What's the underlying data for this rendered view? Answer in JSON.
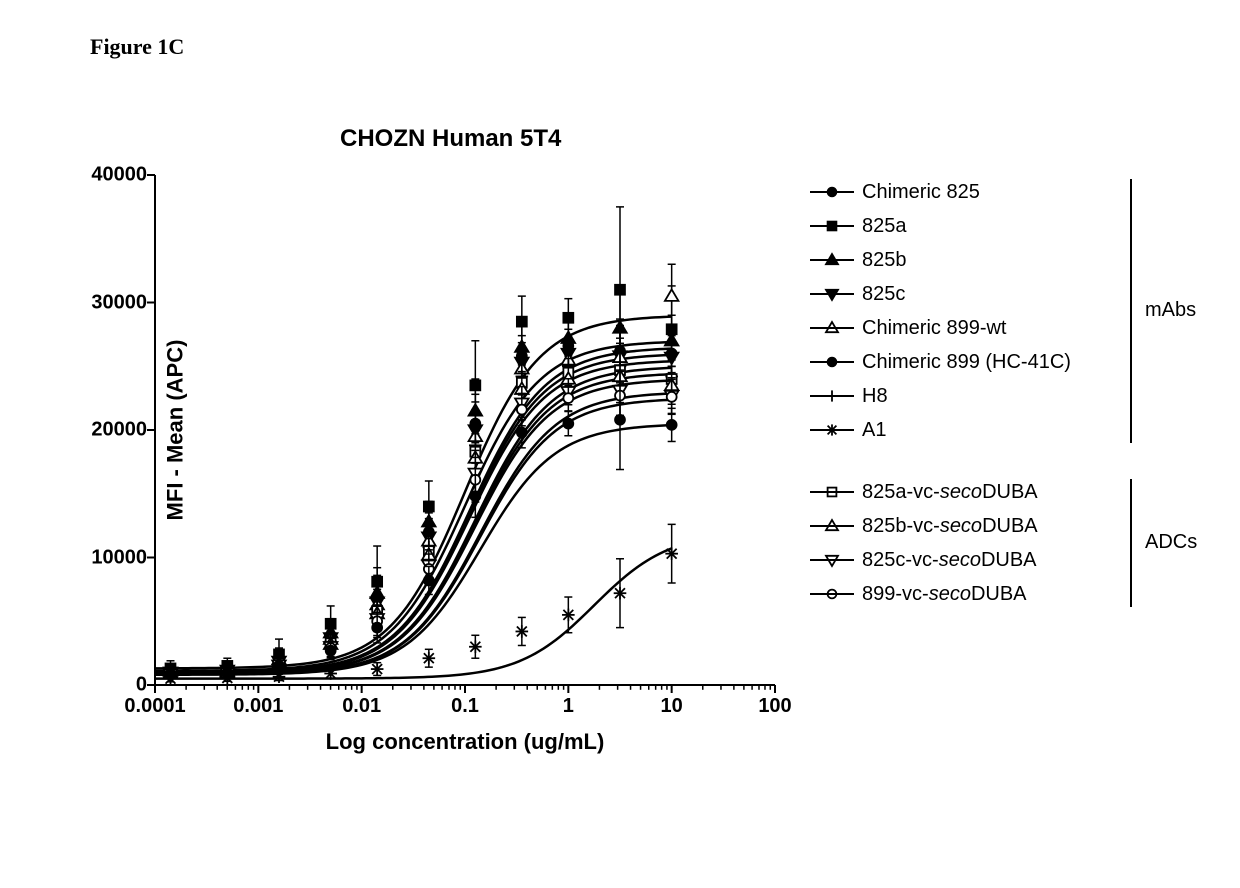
{
  "figure_label": "Figure 1C",
  "title": "CHOZN Human 5T4",
  "axes": {
    "ylabel": "MFI - Mean (APC)",
    "xlabel": "Log concentration (ug/mL)",
    "x_scale": "log10",
    "x_min_exp": -4,
    "x_max_exp": 2,
    "y_min": 0,
    "y_max": 40000,
    "y_tick_step": 10000,
    "x_data_min_exp": -4,
    "x_data_max_exp": 1,
    "x_tick_labels": [
      "0.0001",
      "0.001",
      "0.01",
      "0.1",
      "1",
      "10",
      "100"
    ],
    "y_tick_labels": [
      "0",
      "10000",
      "20000",
      "30000",
      "40000"
    ],
    "axis_color": "#000000",
    "axis_width": 2,
    "tick_length": 8,
    "minor_ticks_per_decade": true,
    "label_fontsize": 22,
    "tick_fontsize": 20,
    "title_fontsize": 24
  },
  "legend_groups": [
    {
      "label": "mAbs",
      "items": [
        {
          "marker": "circle_filled",
          "label": "Chimeric 825"
        },
        {
          "marker": "square_filled",
          "label": "825a"
        },
        {
          "marker": "triangle_up_filled",
          "label": "825b"
        },
        {
          "marker": "triangle_down_filled",
          "label": "825c"
        },
        {
          "marker": "triangle_up_open",
          "label": "Chimeric 899-wt"
        },
        {
          "marker": "circle_filled",
          "label": "Chimeric 899 (HC-41C)"
        },
        {
          "marker": "plus",
          "label": "H8"
        },
        {
          "marker": "asterisk",
          "label": "A1"
        }
      ]
    },
    {
      "label": "ADCs",
      "items": [
        {
          "marker": "square_open",
          "label": "825a-vc-<i>seco</i>DUBA"
        },
        {
          "marker": "triangle_up_open",
          "label": "825b-vc-<i>seco</i>DUBA"
        },
        {
          "marker": "triangle_down_open",
          "label": "825c-vc-<i>seco</i>DUBA"
        },
        {
          "marker": "circle_open",
          "label": "899-vc-<i>seco</i>DUBA"
        }
      ]
    }
  ],
  "series": [
    {
      "name": "825a",
      "marker": "square_filled",
      "plateau": 29000,
      "bottom": 1300,
      "ec50_log": -1.0,
      "x": [
        -3.85,
        -3.3,
        -2.8,
        -2.3,
        -1.85,
        -1.35,
        -0.9,
        -0.45,
        0,
        0.5,
        1
      ],
      "y": [
        1300,
        1500,
        2400,
        4800,
        8100,
        14000,
        23500,
        28500,
        28800,
        31000,
        27900
      ],
      "err": [
        600,
        600,
        1200,
        1400,
        2800,
        2000,
        3500,
        2000,
        1500,
        6500,
        3400
      ]
    },
    {
      "name": "825b",
      "marker": "triangle_up_filled",
      "plateau": 27000,
      "bottom": 1100,
      "ec50_log": -1.0,
      "x": [
        -3.85,
        -3.3,
        -2.8,
        -2.3,
        -1.85,
        -1.35,
        -0.9,
        -0.45,
        0,
        0.5,
        1
      ],
      "y": [
        1100,
        1300,
        2000,
        4100,
        7200,
        12800,
        21500,
        26500,
        27200,
        28000,
        27000
      ],
      "err": [
        400,
        500,
        900,
        1100,
        2000,
        1600,
        2500,
        1700,
        1400,
        3000,
        2000
      ]
    },
    {
      "name": "Chimeric 825",
      "marker": "circle_filled",
      "plateau": 26500,
      "bottom": 1000,
      "ec50_log": -0.95,
      "x": [
        -3.85,
        -3.3,
        -2.8,
        -2.3,
        -1.85,
        -1.35,
        -0.9,
        -0.45,
        0,
        0.5,
        1
      ],
      "y": [
        1000,
        1200,
        1900,
        3900,
        6800,
        12000,
        20500,
        25800,
        26600,
        26200,
        26000
      ],
      "err": [
        400,
        500,
        800,
        1000,
        1800,
        1500,
        2300,
        1600,
        1300,
        2500,
        1800
      ]
    },
    {
      "name": "825c",
      "marker": "triangle_down_filled",
      "plateau": 26000,
      "bottom": 1000,
      "ec50_log": -0.95,
      "x": [
        -3.85,
        -3.3,
        -2.8,
        -2.3,
        -1.85,
        -1.35,
        -0.9,
        -0.45,
        0,
        0.5,
        1
      ],
      "y": [
        1000,
        1150,
        1850,
        3700,
        6500,
        11600,
        20000,
        25300,
        26000,
        25800,
        25700
      ],
      "err": [
        400,
        450,
        750,
        950,
        1700,
        1450,
        2200,
        1550,
        1250,
        2400,
        1700
      ]
    },
    {
      "name": "Chimeric 899-wt",
      "marker": "triangle_up_open",
      "plateau": 25500,
      "bottom": 950,
      "ec50_log": -0.95,
      "x": [
        -3.85,
        -3.3,
        -2.8,
        -2.3,
        -1.85,
        -1.35,
        -0.9,
        -0.45,
        0,
        0.5,
        1
      ],
      "y": [
        950,
        1100,
        1800,
        3600,
        6300,
        11300,
        19500,
        24800,
        25500,
        25700,
        30500
      ],
      "err": [
        350,
        400,
        700,
        900,
        1600,
        1400,
        2100,
        1500,
        1200,
        2300,
        2500
      ]
    },
    {
      "name": "H8",
      "marker": "plus",
      "plateau": 25000,
      "bottom": 900,
      "ec50_log": -0.9,
      "x": [
        -3.85,
        -3.3,
        -2.8,
        -2.3,
        -1.85,
        -1.35,
        -0.9,
        -0.45,
        0,
        0.5,
        1
      ],
      "y": [
        900,
        1050,
        1700,
        3400,
        6000,
        10800,
        18800,
        24200,
        25000,
        25000,
        24200
      ],
      "err": [
        350,
        400,
        700,
        850,
        1500,
        1350,
        2000,
        1450,
        1150,
        2200,
        1550
      ]
    },
    {
      "name": "825a-vc-secoDUBA",
      "marker": "square_open",
      "plateau": 24500,
      "bottom": 900,
      "ec50_log": -0.9,
      "x": [
        -3.85,
        -3.3,
        -2.8,
        -2.3,
        -1.85,
        -1.35,
        -0.9,
        -0.45,
        0,
        0.5,
        1
      ],
      "y": [
        900,
        1050,
        1700,
        3300,
        5800,
        10500,
        18300,
        23700,
        24500,
        24700,
        24000
      ],
      "err": [
        330,
        380,
        650,
        820,
        1450,
        1300,
        1950,
        1400,
        1100,
        2100,
        1500
      ]
    },
    {
      "name": "825b-vc-secoDUBA",
      "marker": "triangle_up_open",
      "plateau": 24000,
      "bottom": 900,
      "ec50_log": -0.9,
      "x": [
        -3.85,
        -3.3,
        -2.8,
        -2.3,
        -1.85,
        -1.35,
        -0.9,
        -0.45,
        0,
        0.5,
        1
      ],
      "y": [
        900,
        1000,
        1650,
        3200,
        5600,
        10200,
        17800,
        23200,
        24000,
        24200,
        23500
      ],
      "err": [
        320,
        370,
        630,
        800,
        1400,
        1280,
        1900,
        1380,
        1080,
        2050,
        1480
      ]
    },
    {
      "name": "825c-vc-secoDUBA",
      "marker": "triangle_down_open",
      "plateau": 23000,
      "bottom": 850,
      "ec50_log": -0.85,
      "x": [
        -3.85,
        -3.3,
        -2.8,
        -2.3,
        -1.85,
        -1.35,
        -0.9,
        -0.45,
        0,
        0.5,
        1
      ],
      "y": [
        850,
        950,
        1550,
        3000,
        5200,
        9400,
        16600,
        22100,
        23000,
        23100,
        22700
      ],
      "err": [
        300,
        350,
        600,
        770,
        1320,
        1200,
        1800,
        1300,
        1020,
        1950,
        1400
      ]
    },
    {
      "name": "899-vc-secoDUBA",
      "marker": "circle_open",
      "plateau": 22500,
      "bottom": 850,
      "ec50_log": -0.85,
      "x": [
        -3.85,
        -3.3,
        -2.8,
        -2.3,
        -1.85,
        -1.35,
        -0.9,
        -0.45,
        0,
        0.5,
        1
      ],
      "y": [
        850,
        950,
        1500,
        2900,
        5000,
        9100,
        16100,
        21600,
        22500,
        22700,
        22600
      ],
      "err": [
        300,
        340,
        580,
        750,
        1280,
        1170,
        1750,
        1270,
        1000,
        1900,
        1370
      ]
    },
    {
      "name": "Chimeric 899 (HC-41C)",
      "marker": "circle_filled",
      "plateau": 20500,
      "bottom": 800,
      "ec50_log": -0.85,
      "x": [
        -3.85,
        -3.3,
        -2.8,
        -2.3,
        -1.85,
        -1.35,
        -0.9,
        -0.45,
        0,
        0.5,
        1
      ],
      "y": [
        800,
        900,
        1400,
        2700,
        4500,
        8200,
        14800,
        19800,
        20500,
        20800,
        20400
      ],
      "err": [
        280,
        320,
        550,
        700,
        1200,
        1100,
        1650,
        1200,
        950,
        3900,
        1300
      ]
    },
    {
      "name": "A1",
      "marker": "asterisk",
      "plateau": 12000,
      "bottom": 500,
      "ec50_log": 0.25,
      "x": [
        -3.85,
        -3.3,
        -2.8,
        -2.3,
        -1.85,
        -1.35,
        -0.9,
        -0.45,
        0,
        0.5,
        1
      ],
      "y": [
        500,
        550,
        650,
        900,
        1250,
        2100,
        3000,
        4200,
        5500,
        7200,
        10300
      ],
      "err": [
        250,
        260,
        300,
        400,
        500,
        700,
        900,
        1100,
        1400,
        2700,
        2300
      ]
    }
  ],
  "colors": {
    "stroke": "#000000",
    "fill": "#000000",
    "background": "#ffffff",
    "curve_width": 2.5,
    "marker_size": 9,
    "errorbar_width": 1.5,
    "errorbar_cap": 8
  }
}
